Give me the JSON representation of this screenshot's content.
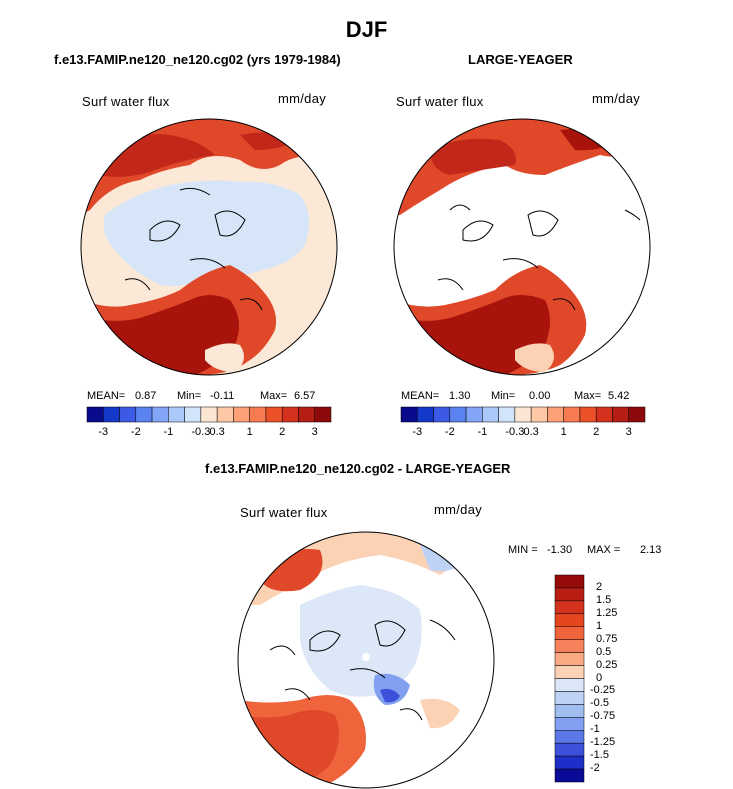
{
  "title": "DJF",
  "panels": [
    {
      "case_title": "f.e13.FAMIP.ne120_ne120.cg02 (yrs 1979-1984)",
      "field_label": "Surf water flux",
      "units_label": "mm/day",
      "stats": {
        "mean_label": "MEAN=",
        "mean": "0.87",
        "min_label": "Min=",
        "min": "-0.11",
        "max_label": "Max=",
        "max": "6.57"
      }
    },
    {
      "case_title": "LARGE-YEAGER",
      "field_label": "Surf water flux",
      "units_label": "mm/day",
      "stats": {
        "mean_label": "MEAN=",
        "mean": "1.30",
        "min_label": "Min=",
        "min": "0.00",
        "max_label": "Max=",
        "max": "5.42"
      }
    },
    {
      "case_title": "f.e13.FAMIP.ne120_ne120.cg02 - LARGE-YEAGER",
      "field_label": "Surf water flux",
      "units_label": "mm/day",
      "stats": {
        "min_label": "MIN =",
        "min": "-1.30",
        "max_label": "MAX =",
        "max": "2.13"
      }
    }
  ],
  "colorbar_top": {
    "colors": [
      "#0a0a8c",
      "#1438c8",
      "#3c5ae6",
      "#5a82f0",
      "#82a5f5",
      "#aac8fa",
      "#d2e4fa",
      "#fae6d2",
      "#fcc8a5",
      "#fca078",
      "#f77a50",
      "#eb5028",
      "#d2321e",
      "#b41e14",
      "#8c0a0a"
    ],
    "tick_labels": [
      "-3",
      "-2",
      "-1",
      "-0.3",
      "0.3",
      "1",
      "2",
      "3"
    ]
  },
  "colorbar_diff": {
    "colors_top_to_bottom": [
      "#960a0a",
      "#b91e14",
      "#d2321e",
      "#e6461e",
      "#f0643c",
      "#f5825a",
      "#faaa82",
      "#fcd2b4",
      "#dce8f8",
      "#bed2f5",
      "#a0bef0",
      "#82a0f0",
      "#5a78e6",
      "#3c50dc",
      "#1e2ec8",
      "#0a0a96"
    ],
    "tick_labels_top_to_bottom": [
      "2",
      "1.5",
      "1.25",
      "1",
      "0.75",
      "0.5",
      "0.25",
      "0",
      "-0.25",
      "-0.5",
      "-0.75",
      "-1",
      "-1.25",
      "-1.5",
      "-2"
    ]
  }
}
